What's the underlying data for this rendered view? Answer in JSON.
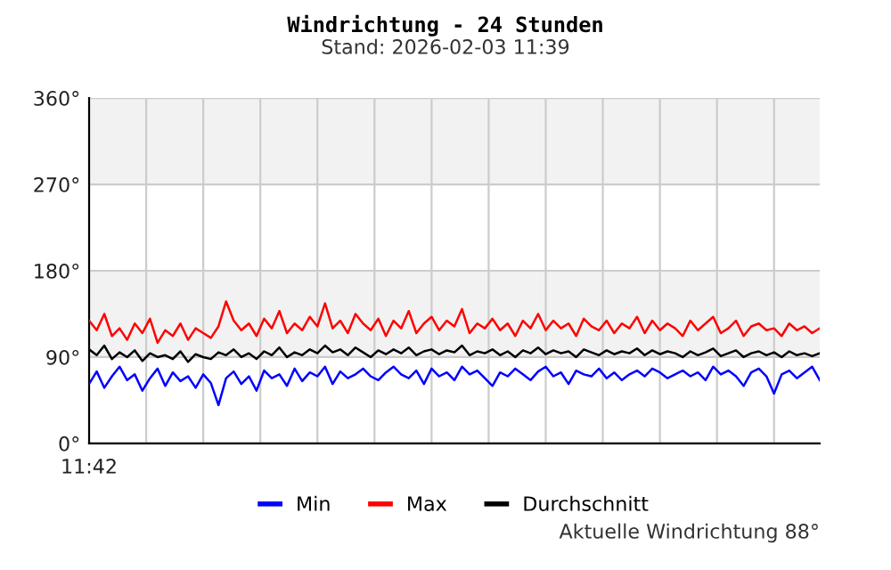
{
  "chart_data": {
    "type": "line",
    "title": "Windrichtung - 24 Stunden",
    "subtitle": "Stand: 2026-02-03 11:39",
    "annotations": [
      "Aktuelle Windrichtung 88°"
    ],
    "categories": [
      "11:42",
      null,
      null,
      null,
      null,
      null,
      null,
      null,
      null,
      null,
      null,
      null,
      null,
      null,
      null,
      null,
      null,
      null,
      null,
      null,
      null,
      null,
      null,
      null,
      null,
      null,
      null,
      null,
      null,
      null,
      null,
      null,
      null,
      null,
      null,
      null,
      null,
      null,
      null,
      null,
      null,
      null,
      null,
      null,
      null,
      null,
      null,
      null,
      null,
      null,
      null,
      null,
      null,
      null,
      null,
      null,
      null,
      null,
      null,
      null,
      null,
      null,
      null,
      null,
      null,
      null,
      null,
      null,
      null,
      null,
      null,
      null,
      null,
      null,
      null,
      null,
      null,
      null,
      null,
      null,
      null,
      null,
      null,
      null,
      null,
      null,
      null,
      null,
      null,
      null,
      null,
      null,
      null,
      null,
      null,
      null,
      null
    ],
    "series": [
      {
        "name": "Min",
        "color": "#0000ff",
        "values": [
          62,
          75,
          58,
          70,
          80,
          66,
          72,
          55,
          68,
          78,
          60,
          74,
          65,
          70,
          58,
          72,
          63,
          40,
          68,
          75,
          62,
          70,
          55,
          76,
          68,
          72,
          60,
          78,
          65,
          74,
          70,
          80,
          62,
          75,
          68,
          72,
          78,
          70,
          66,
          74,
          80,
          72,
          68,
          76,
          62,
          78,
          70,
          74,
          66,
          80,
          72,
          76,
          68,
          60,
          74,
          70,
          78,
          72,
          66,
          75,
          80,
          70,
          74,
          62,
          76,
          72,
          70,
          78,
          68,
          74,
          66,
          72,
          76,
          70,
          78,
          74,
          68,
          72,
          76,
          70,
          74,
          66,
          80,
          72,
          76,
          70,
          60,
          74,
          78,
          70,
          52,
          72,
          76,
          68,
          74,
          80,
          66
        ]
      },
      {
        "name": "Max",
        "color": "#ff0000",
        "values": [
          128,
          118,
          135,
          112,
          120,
          108,
          125,
          115,
          130,
          105,
          118,
          112,
          125,
          108,
          120,
          115,
          110,
          122,
          148,
          128,
          118,
          125,
          112,
          130,
          120,
          138,
          115,
          125,
          118,
          132,
          122,
          146,
          120,
          128,
          115,
          135,
          125,
          118,
          130,
          112,
          128,
          120,
          138,
          115,
          125,
          132,
          118,
          128,
          122,
          140,
          115,
          125,
          120,
          130,
          118,
          125,
          112,
          128,
          120,
          135,
          118,
          128,
          120,
          125,
          112,
          130,
          122,
          118,
          128,
          115,
          125,
          120,
          132,
          115,
          128,
          118,
          125,
          120,
          112,
          128,
          118,
          125,
          132,
          115,
          120,
          128,
          112,
          122,
          125,
          118,
          120,
          112,
          125,
          118,
          122,
          115,
          120
        ]
      },
      {
        "name": "Durchschnitt",
        "color": "#000000",
        "values": [
          98,
          92,
          102,
          88,
          95,
          90,
          97,
          86,
          94,
          90,
          92,
          88,
          96,
          85,
          93,
          90,
          88,
          95,
          92,
          98,
          90,
          94,
          88,
          96,
          92,
          100,
          90,
          95,
          92,
          98,
          94,
          102,
          95,
          98,
          92,
          100,
          95,
          90,
          97,
          93,
          98,
          94,
          100,
          92,
          96,
          98,
          93,
          97,
          95,
          102,
          92,
          96,
          94,
          98,
          92,
          96,
          90,
          97,
          94,
          100,
          93,
          97,
          94,
          96,
          90,
          98,
          95,
          92,
          97,
          93,
          96,
          94,
          99,
          92,
          97,
          93,
          96,
          94,
          90,
          96,
          92,
          95,
          99,
          91,
          94,
          97,
          90,
          94,
          96,
          92,
          95,
          90,
          96,
          92,
          94,
          91,
          94
        ]
      }
    ],
    "ylim": [
      0,
      360
    ],
    "yticks": [
      {
        "value": 0,
        "label": "0°"
      },
      {
        "value": 90,
        "label": "90°"
      },
      {
        "value": 180,
        "label": "180°"
      },
      {
        "value": 270,
        "label": "270°"
      },
      {
        "value": 360,
        "label": "360°"
      }
    ],
    "bands": [
      {
        "axis": "y",
        "from": 90,
        "to": 180,
        "color": "#f2f2f2"
      },
      {
        "axis": "y",
        "from": 270,
        "to": 360,
        "color": "#f2f2f2"
      }
    ],
    "grid": true,
    "legend": "bottom",
    "line_style": "solid",
    "marker": "none"
  }
}
